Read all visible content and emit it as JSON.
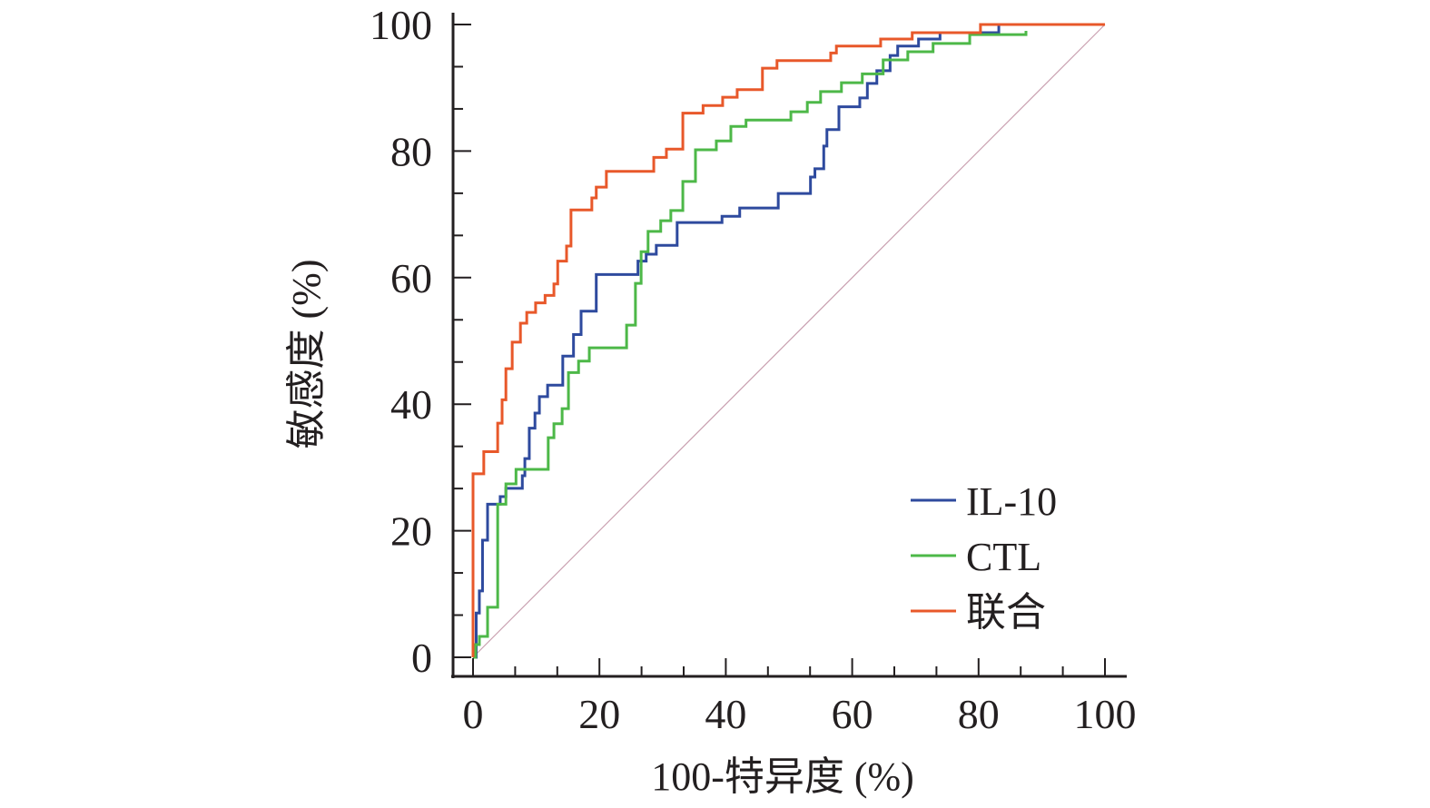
{
  "chart_data": {
    "type": "line",
    "title": "",
    "xlabel": "100-特异度 (%)",
    "ylabel": "敏感度 (%)",
    "xlim": [
      0,
      100
    ],
    "ylim": [
      0,
      100
    ],
    "xticks": [
      "0",
      "20",
      "40",
      "60",
      "80",
      "100"
    ],
    "yticks": [
      "0",
      "20",
      "40",
      "60",
      "80",
      "100"
    ],
    "grid": false,
    "legend_position": "bottom-right",
    "reference_line": {
      "from": [
        0,
        0
      ],
      "to": [
        100,
        100
      ],
      "color": "#c9a0b0"
    },
    "series": [
      {
        "name": "IL-10",
        "color": "#2e4a9e",
        "step": true,
        "points": [
          [
            0,
            0
          ],
          [
            0.5,
            7
          ],
          [
            1,
            10.5
          ],
          [
            1.5,
            18.5
          ],
          [
            2.3,
            24.2
          ],
          [
            4.3,
            25.4
          ],
          [
            5.2,
            26.7
          ],
          [
            7.8,
            28.7
          ],
          [
            8.2,
            31.4
          ],
          [
            8.9,
            36.2
          ],
          [
            9.8,
            38.6
          ],
          [
            10.5,
            41.2
          ],
          [
            11.8,
            43
          ],
          [
            14.2,
            47.6
          ],
          [
            15.9,
            51
          ],
          [
            17.1,
            54.7
          ],
          [
            19.5,
            60.5
          ],
          [
            26.1,
            62.6
          ],
          [
            27.4,
            63.7
          ],
          [
            29,
            65.1
          ],
          [
            32.3,
            68.7
          ],
          [
            39.4,
            69.7
          ],
          [
            42.2,
            71
          ],
          [
            48.3,
            73.3
          ],
          [
            53.4,
            75.9
          ],
          [
            54.1,
            77.2
          ],
          [
            55.5,
            80.8
          ],
          [
            56,
            83.4
          ],
          [
            57.9,
            87
          ],
          [
            61.2,
            88.4
          ],
          [
            62.4,
            90.7
          ],
          [
            63.9,
            92.7
          ],
          [
            66,
            95.1
          ],
          [
            67.2,
            96.6
          ],
          [
            70.5,
            97.7
          ],
          [
            73.9,
            98.7
          ],
          [
            83.2,
            100
          ],
          [
            100,
            100
          ]
        ]
      },
      {
        "name": "CTL",
        "color": "#4db848",
        "step": true,
        "points": [
          [
            0,
            0
          ],
          [
            0.4,
            2
          ],
          [
            1,
            3.3
          ],
          [
            2.3,
            7.9
          ],
          [
            3.9,
            24.2
          ],
          [
            5.2,
            27.4
          ],
          [
            6.8,
            29.7
          ],
          [
            11.9,
            34.7
          ],
          [
            12.8,
            36.9
          ],
          [
            14.1,
            39.3
          ],
          [
            15.1,
            45
          ],
          [
            16.7,
            46.8
          ],
          [
            18.4,
            48.9
          ],
          [
            24.3,
            52.5
          ],
          [
            25.7,
            59.1
          ],
          [
            26.6,
            64.1
          ],
          [
            27.7,
            67.3
          ],
          [
            29.7,
            69
          ],
          [
            31.3,
            70.6
          ],
          [
            33.2,
            75.2
          ],
          [
            35.2,
            80.2
          ],
          [
            38.5,
            81.6
          ],
          [
            40.8,
            83.9
          ],
          [
            43.2,
            84.9
          ],
          [
            50.3,
            86.2
          ],
          [
            52.9,
            87.7
          ],
          [
            55,
            89.4
          ],
          [
            58.3,
            90.8
          ],
          [
            61.6,
            92.2
          ],
          [
            64.9,
            94.4
          ],
          [
            68.8,
            95.7
          ],
          [
            72.8,
            97
          ],
          [
            78.6,
            98.4
          ],
          [
            87.5,
            99
          ]
        ]
      },
      {
        "name": "联合",
        "color": "#e8582a",
        "step": true,
        "points": [
          [
            0,
            0
          ],
          [
            0,
            29
          ],
          [
            1.7,
            32.5
          ],
          [
            3.9,
            37
          ],
          [
            4.6,
            40.7
          ],
          [
            5.2,
            45.6
          ],
          [
            6.2,
            49.8
          ],
          [
            7.5,
            52.8
          ],
          [
            8.5,
            54.5
          ],
          [
            9.9,
            56
          ],
          [
            11.4,
            57.2
          ],
          [
            12.8,
            59
          ],
          [
            13.4,
            62.6
          ],
          [
            14.8,
            65
          ],
          [
            15.5,
            70.7
          ],
          [
            18.8,
            72.6
          ],
          [
            19.5,
            74.3
          ],
          [
            21.1,
            76.8
          ],
          [
            28.6,
            79
          ],
          [
            30.6,
            80.3
          ],
          [
            33.2,
            86
          ],
          [
            36.4,
            87.2
          ],
          [
            39.5,
            88.5
          ],
          [
            41.8,
            89.7
          ],
          [
            45.8,
            93.1
          ],
          [
            48.1,
            94.3
          ],
          [
            56.6,
            95.5
          ],
          [
            57.5,
            96.6
          ],
          [
            64.5,
            97.7
          ],
          [
            69.5,
            98.7
          ],
          [
            80.3,
            100
          ],
          [
            100,
            100
          ]
        ]
      }
    ]
  }
}
